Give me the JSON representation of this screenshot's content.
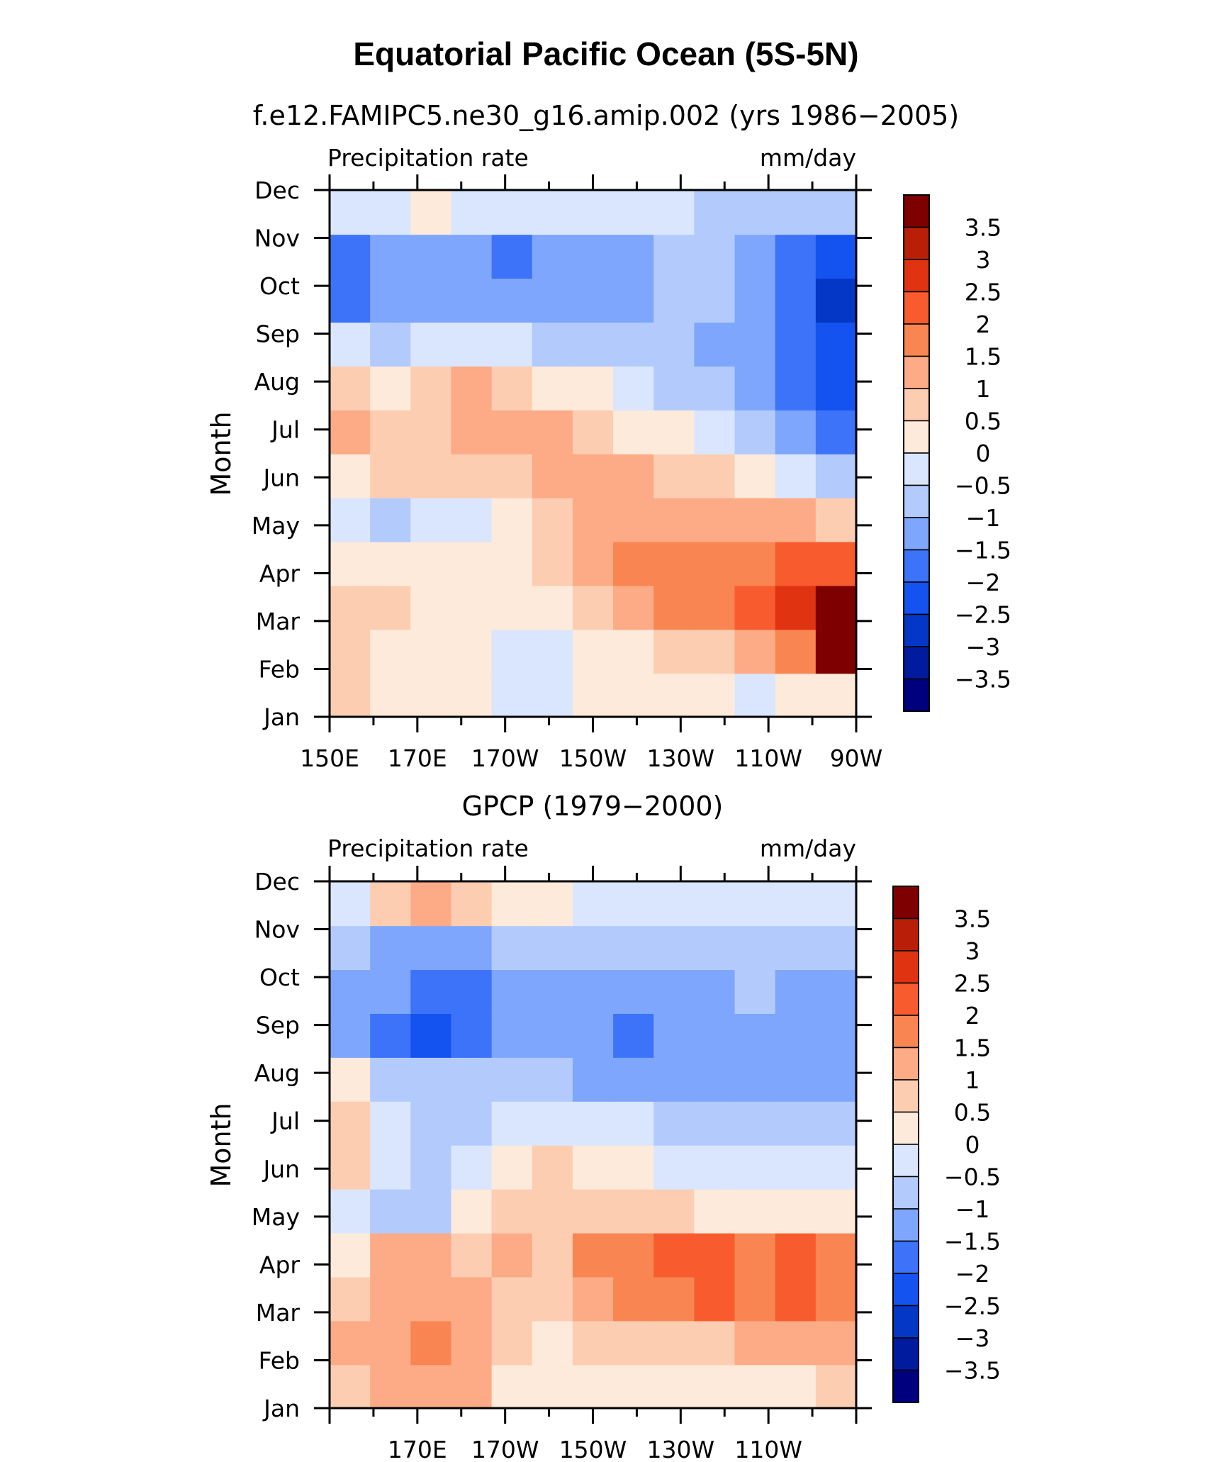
{
  "figure": {
    "title": "Equatorial Pacific Ocean (5S-5N)"
  },
  "chart_data": [
    {
      "type": "heatmap",
      "title": "f.e12.FAMIPC5.ne30_g16.amip.002 (yrs 1986−2005)",
      "left_label": "Precipitation rate",
      "right_label": "mm/day",
      "ylabel": "Month",
      "xlabel": "",
      "x": [
        150,
        160,
        170,
        180,
        190,
        200,
        210,
        220,
        230,
        240,
        250,
        260,
        270
      ],
      "xticklabels": [
        "150E",
        "170E",
        "170W",
        "150W",
        "130W",
        "110W",
        "90W"
      ],
      "xtick_values": [
        150,
        170,
        190,
        210,
        230,
        250,
        270
      ],
      "y": [
        "Jan",
        "Feb",
        "Mar",
        "Apr",
        "May",
        "Jun",
        "Jul",
        "Aug",
        "Sep",
        "Oct",
        "Nov",
        "Dec"
      ],
      "values": [
        [
          0.6,
          0.4,
          0.3,
          0.1,
          -0.3,
          -0.1,
          0.2,
          0.2,
          0.1,
          0.0,
          -0.2,
          0.0,
          0.3
        ],
        [
          0.6,
          0.4,
          0.3,
          0.2,
          -0.3,
          -0.2,
          0.3,
          0.4,
          0.5,
          0.7,
          1.2,
          1.8,
          3.5
        ],
        [
          0.5,
          0.5,
          0.3,
          0.3,
          0.0,
          0.2,
          0.6,
          1.2,
          1.5,
          1.8,
          2.3,
          2.8,
          3.8
        ],
        [
          0.3,
          0.3,
          0.1,
          0.0,
          0.2,
          0.5,
          1.3,
          1.6,
          1.6,
          1.7,
          1.7,
          2.0,
          2.0
        ],
        [
          -0.3,
          -0.6,
          -0.3,
          -0.2,
          0.3,
          0.8,
          1.1,
          1.2,
          1.1,
          1.1,
          1.0,
          1.0,
          0.5
        ],
        [
          0.2,
          0.6,
          0.5,
          0.6,
          0.8,
          1.1,
          1.1,
          1.0,
          0.8,
          0.5,
          0.0,
          -0.5,
          -1.0
        ],
        [
          1.2,
          0.8,
          0.8,
          1.0,
          1.3,
          1.0,
          0.7,
          0.3,
          0.0,
          -0.3,
          -0.7,
          -1.2,
          -2.0
        ],
        [
          0.5,
          0.3,
          0.9,
          1.2,
          0.8,
          0.4,
          0.0,
          -0.4,
          -0.6,
          -0.8,
          -1.2,
          -1.8,
          -2.2
        ],
        [
          -0.4,
          -0.7,
          -0.4,
          -0.2,
          -0.5,
          -0.7,
          -0.8,
          -0.9,
          -0.9,
          -1.1,
          -1.5,
          -2.0,
          -2.4
        ],
        [
          -1.8,
          -1.4,
          -1.3,
          -1.2,
          -1.3,
          -1.2,
          -1.2,
          -1.1,
          -0.9,
          -1.0,
          -1.4,
          -2.0,
          -2.6
        ],
        [
          -1.9,
          -1.4,
          -1.3,
          -1.4,
          -1.8,
          -1.3,
          -1.2,
          -1.1,
          -0.8,
          -0.9,
          -1.4,
          -1.9,
          -2.4
        ],
        [
          -0.2,
          -0.2,
          0.2,
          -0.1,
          -0.3,
          -0.4,
          -0.4,
          -0.5,
          -0.3,
          -0.7,
          -0.8,
          -0.8,
          -0.9
        ]
      ],
      "levels": [
        -3.5,
        -3,
        -2.5,
        -2,
        -1.5,
        -1,
        -0.5,
        0,
        0.5,
        1,
        1.5,
        2,
        2.5,
        3,
        3.5
      ],
      "colorbar_labels": [
        "3.5",
        "3",
        "2.5",
        "2",
        "1.5",
        "1",
        "0.5",
        "0",
        "−0.5",
        "−1",
        "−1.5",
        "−2",
        "−2.5",
        "−3",
        "−3.5"
      ]
    },
    {
      "type": "heatmap",
      "title": "GPCP (1979−2000)",
      "left_label": "Precipitation rate",
      "right_label": "mm/day",
      "ylabel": "Month",
      "xlabel": "",
      "x": [
        150,
        160,
        170,
        180,
        190,
        200,
        210,
        220,
        230,
        240,
        250,
        260,
        270
      ],
      "xticklabels": [
        "170E",
        "170W",
        "150W",
        "130W",
        "110W"
      ],
      "xtick_values": [
        170,
        190,
        210,
        230,
        250
      ],
      "y": [
        "Jan",
        "Feb",
        "Mar",
        "Apr",
        "May",
        "Jun",
        "Jul",
        "Aug",
        "Sep",
        "Oct",
        "Nov",
        "Dec"
      ],
      "values": [
        [
          0.7,
          1.1,
          1.4,
          1.3,
          0.4,
          0.1,
          0.3,
          0.2,
          0.1,
          0.1,
          0.2,
          0.4,
          0.5
        ],
        [
          1.0,
          1.3,
          1.6,
          1.3,
          0.6,
          0.3,
          0.5,
          0.6,
          0.7,
          0.8,
          1.0,
          1.0,
          1.1
        ],
        [
          0.8,
          1.3,
          1.4,
          1.1,
          0.8,
          0.8,
          1.4,
          1.6,
          1.8,
          2.0,
          1.7,
          2.0,
          1.8
        ],
        [
          0.4,
          1.0,
          1.2,
          0.8,
          1.0,
          0.9,
          1.5,
          1.7,
          2.1,
          2.0,
          1.9,
          2.0,
          1.7
        ],
        [
          -0.4,
          -0.6,
          -0.7,
          0.1,
          0.6,
          0.8,
          0.7,
          0.6,
          0.5,
          0.4,
          0.3,
          0.2,
          0.1
        ],
        [
          0.6,
          -0.4,
          -0.7,
          -0.4,
          0.4,
          0.6,
          0.4,
          0.1,
          -0.3,
          -0.4,
          -0.4,
          -0.5,
          -0.5
        ],
        [
          0.6,
          -0.3,
          -0.7,
          -0.6,
          -0.5,
          -0.2,
          -0.4,
          -0.5,
          -0.7,
          -0.8,
          -0.8,
          -0.8,
          -0.9
        ],
        [
          0.3,
          -0.7,
          -0.8,
          -0.9,
          -0.9,
          -0.9,
          -1.1,
          -1.2,
          -1.1,
          -1.2,
          -1.1,
          -1.1,
          -1.2
        ],
        [
          -1.2,
          -1.6,
          -2.1,
          -1.8,
          -1.4,
          -1.3,
          -1.5,
          -1.6,
          -1.5,
          -1.3,
          -1.2,
          -1.3,
          -1.4
        ],
        [
          -1.1,
          -1.4,
          -1.8,
          -1.9,
          -1.4,
          -1.2,
          -1.4,
          -1.5,
          -1.4,
          -1.2,
          -1.0,
          -1.2,
          -1.3
        ],
        [
          -0.8,
          -1.1,
          -1.1,
          -1.1,
          -0.9,
          -0.8,
          -0.9,
          -0.8,
          -0.6,
          -0.7,
          -0.9,
          -0.9,
          -1.0
        ],
        [
          -0.2,
          0.5,
          1.2,
          0.6,
          0.3,
          0.0,
          -0.1,
          -0.2,
          -0.3,
          -0.4,
          -0.4,
          -0.3,
          -0.3
        ]
      ],
      "levels": [
        -3.5,
        -3,
        -2.5,
        -2,
        -1.5,
        -1,
        -0.5,
        0,
        0.5,
        1,
        1.5,
        2,
        2.5,
        3,
        3.5
      ],
      "colorbar_labels": [
        "3.5",
        "3",
        "2.5",
        "2",
        "1.5",
        "1",
        "0.5",
        "0",
        "−0.5",
        "−1",
        "−1.5",
        "−2",
        "−2.5",
        "−3",
        "−3.5"
      ]
    }
  ],
  "colors": {
    "palette": [
      "#00007f",
      "#001b9e",
      "#0437c6",
      "#1453ef",
      "#3d73f8",
      "#7ea6fc",
      "#b3cafd",
      "#d9e6fe",
      "#fdeada",
      "#fdcdb2",
      "#fcab86",
      "#f98652",
      "#f85c2e",
      "#e03312",
      "#b91e07",
      "#7f0000"
    ],
    "frame": "#000000"
  }
}
